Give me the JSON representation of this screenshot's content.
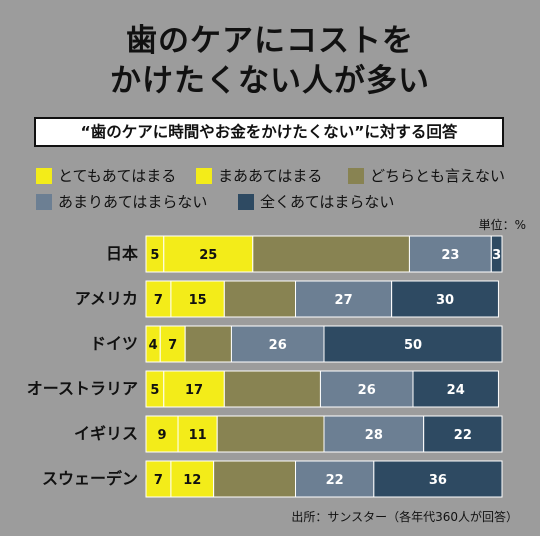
{
  "title_line1": "歯のケアにコストを",
  "title_line2": "かけたくない人が多い",
  "subtitle": "“歯のケアに時間やお金をかけたくない”に対する回答",
  "unit": "単位：%",
  "source": "出所：サンスター（各年代360人が回答）",
  "colors": [
    "#f3ec19",
    "#f3ec19",
    "#888352",
    "#6c7f93",
    "#2e4a62"
  ],
  "label_colors": [
    "#111111",
    "#111111",
    "#ffffff",
    "#ffffff",
    "#ffffff"
  ],
  "chart_data": {
    "type": "bar",
    "orientation": "horizontal",
    "stacked": true,
    "unit": "%",
    "categories": [
      "日本",
      "アメリカ",
      "ドイツ",
      "オーストラリア",
      "イギリス",
      "スウェーデン"
    ],
    "series": [
      {
        "name": "とてもあてはまる",
        "values": [
          5,
          7,
          4,
          5,
          9,
          7
        ]
      },
      {
        "name": "まああてはまる",
        "values": [
          25,
          15,
          7,
          17,
          11,
          12
        ]
      },
      {
        "name": "どちらとも言えない",
        "values": [
          44,
          20,
          13,
          27,
          30,
          23
        ]
      },
      {
        "name": "あまりあてはまらない",
        "values": [
          23,
          27,
          26,
          26,
          28,
          22
        ]
      },
      {
        "name": "全くあてはまらない",
        "values": [
          3,
          30,
          50,
          24,
          22,
          36
        ]
      }
    ],
    "data_labels": [
      [
        "5",
        "25",
        "",
        "23",
        "3"
      ],
      [
        "7",
        "15",
        "",
        "27",
        "30"
      ],
      [
        "4",
        "7",
        "",
        "26",
        "50"
      ],
      [
        "5",
        "17",
        "",
        "26",
        "24"
      ],
      [
        "9",
        "11",
        "",
        "28",
        "22"
      ],
      [
        "7",
        "12",
        "",
        "22",
        "36"
      ]
    ],
    "legend_position": "top",
    "grid": false
  }
}
